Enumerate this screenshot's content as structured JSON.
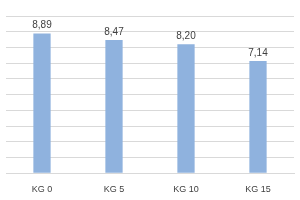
{
  "chart_data": {
    "type": "bar",
    "categories": [
      "KG 0",
      "KG 5",
      "KG 10",
      "KG 15"
    ],
    "values": [
      8.89,
      8.47,
      8.2,
      7.14
    ],
    "value_labels": [
      "8,89",
      "8,47",
      "8,20",
      "7,14"
    ],
    "color": "#8fb2de",
    "ylim": [
      0,
      10
    ],
    "yticks": [
      0,
      1,
      2,
      3,
      4,
      5,
      6,
      7,
      8,
      9,
      10
    ],
    "grid": true,
    "data_labels": true,
    "tick_labels": "x"
  }
}
